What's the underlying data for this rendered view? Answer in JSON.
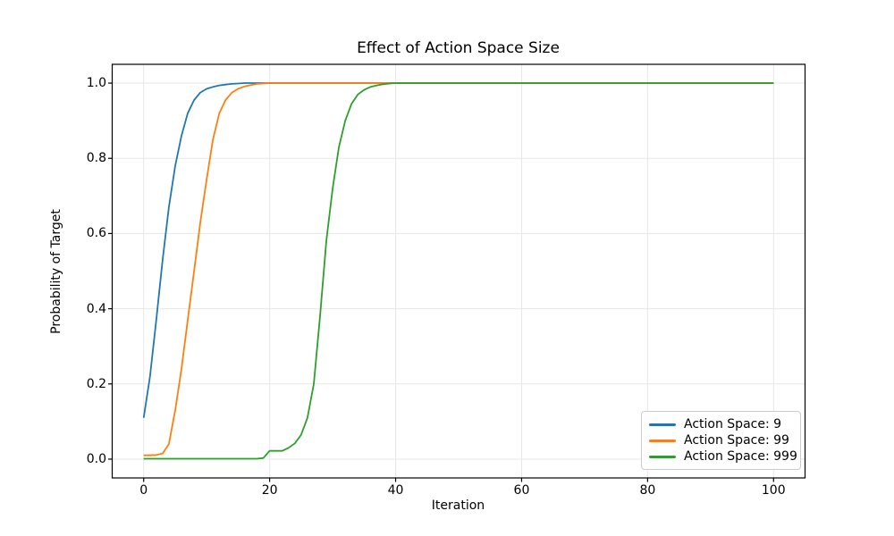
{
  "chart_data": {
    "type": "line",
    "title": "Effect of Action Space Size",
    "xlabel": "Iteration",
    "ylabel": "Probability of Target",
    "xlim": [
      -5,
      105
    ],
    "ylim": [
      -0.05,
      1.05
    ],
    "grid": true,
    "legend_position": "lower right",
    "xticks": {
      "values": [
        0,
        20,
        40,
        60,
        80,
        100
      ],
      "labels": [
        "0",
        "20",
        "40",
        "60",
        "80",
        "100"
      ]
    },
    "yticks": {
      "values": [
        0.0,
        0.2,
        0.4,
        0.6,
        0.8,
        1.0
      ],
      "labels": [
        "0.0",
        "0.2",
        "0.4",
        "0.6",
        "0.8",
        "1.0"
      ]
    },
    "series": [
      {
        "name": "Action Space: 9",
        "color": "#1f77b4",
        "x": [
          0,
          1,
          2,
          3,
          4,
          5,
          6,
          7,
          8,
          9,
          10,
          11,
          12,
          13,
          14,
          15,
          16,
          18,
          20,
          30,
          40,
          60,
          80,
          100
        ],
        "y": [
          0.11,
          0.22,
          0.37,
          0.53,
          0.67,
          0.78,
          0.86,
          0.92,
          0.955,
          0.975,
          0.985,
          0.99,
          0.994,
          0.996,
          0.998,
          0.999,
          1.0,
          1.0,
          1.0,
          1.0,
          1.0,
          1.0,
          1.0,
          1.0
        ]
      },
      {
        "name": "Action Space: 99",
        "color": "#ff7f0e",
        "x": [
          0,
          1,
          2,
          3,
          4,
          5,
          6,
          7,
          8,
          9,
          10,
          11,
          12,
          13,
          14,
          15,
          16,
          17,
          18,
          19,
          20,
          30,
          40,
          60,
          80,
          100
        ],
        "y": [
          0.01,
          0.01,
          0.011,
          0.015,
          0.04,
          0.13,
          0.24,
          0.37,
          0.5,
          0.63,
          0.745,
          0.85,
          0.92,
          0.955,
          0.975,
          0.985,
          0.991,
          0.995,
          0.998,
          0.999,
          1.0,
          1.0,
          1.0,
          1.0,
          1.0,
          1.0
        ]
      },
      {
        "name": "Action Space: 999",
        "color": "#2ca02c",
        "x": [
          0,
          5,
          10,
          15,
          18,
          19,
          20,
          21,
          22,
          23,
          24,
          25,
          26,
          27,
          28,
          29,
          30,
          31,
          32,
          33,
          34,
          35,
          36,
          37,
          38,
          39,
          40,
          50,
          60,
          80,
          100
        ],
        "y": [
          0.001,
          0.001,
          0.001,
          0.001,
          0.001,
          0.003,
          0.022,
          0.022,
          0.022,
          0.03,
          0.042,
          0.065,
          0.11,
          0.2,
          0.38,
          0.58,
          0.72,
          0.83,
          0.9,
          0.945,
          0.97,
          0.982,
          0.99,
          0.994,
          0.997,
          0.999,
          1.0,
          1.0,
          1.0,
          1.0,
          1.0
        ]
      }
    ]
  },
  "colors": {
    "grid": "#e7e7e7",
    "spine": "#000000",
    "tick": "#000000",
    "background": "#ffffff",
    "legend_border": "#cccccc"
  }
}
